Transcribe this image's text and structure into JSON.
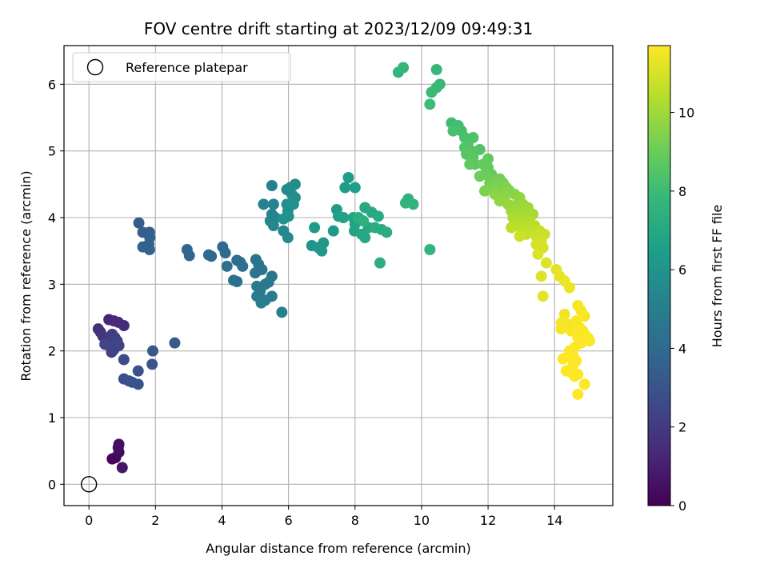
{
  "chart_data": {
    "type": "scatter",
    "title": "FOV centre drift starting at 2023/12/09 09:49:31",
    "xlabel": "Angular distance from reference (arcmin)",
    "ylabel": "Rotation from reference (arcmin)",
    "colorbar_label": "Hours from first FF file",
    "xlim": [
      -0.75,
      15.75
    ],
    "ylim": [
      -0.32,
      6.58
    ],
    "xticks": [
      0,
      2,
      4,
      6,
      8,
      10,
      12,
      14
    ],
    "yticks": [
      0,
      1,
      2,
      3,
      4,
      5,
      6
    ],
    "colorbar_range": [
      0,
      11.7
    ],
    "colorbar_ticks": [
      0,
      2,
      4,
      6,
      8,
      10
    ],
    "colormap": "viridis",
    "grid": true,
    "legend": {
      "placement": "top-left",
      "entries": [
        {
          "label": "Reference platepar",
          "marker": "open-circle"
        }
      ]
    },
    "reference_point": {
      "x": 0,
      "y": 0
    },
    "points": [
      {
        "x": 0.7,
        "y": 0.38,
        "h": 0.1
      },
      {
        "x": 0.8,
        "y": 0.4,
        "h": 0.2
      },
      {
        "x": 0.9,
        "y": 0.48,
        "h": 0.3
      },
      {
        "x": 0.88,
        "y": 0.55,
        "h": 0.4
      },
      {
        "x": 0.9,
        "y": 0.6,
        "h": 0.5
      },
      {
        "x": 1.0,
        "y": 0.25,
        "h": 0.7
      },
      {
        "x": 0.6,
        "y": 2.47,
        "h": 1.2
      },
      {
        "x": 0.75,
        "y": 2.45,
        "h": 1.3
      },
      {
        "x": 0.88,
        "y": 2.43,
        "h": 1.4
      },
      {
        "x": 1.05,
        "y": 2.38,
        "h": 1.5
      },
      {
        "x": 0.28,
        "y": 2.33,
        "h": 1.6
      },
      {
        "x": 0.35,
        "y": 2.28,
        "h": 1.7
      },
      {
        "x": 0.42,
        "y": 2.22,
        "h": 1.8
      },
      {
        "x": 0.5,
        "y": 2.18,
        "h": 1.9
      },
      {
        "x": 0.55,
        "y": 2.12,
        "h": 2.0
      },
      {
        "x": 0.6,
        "y": 2.08,
        "h": 2.05
      },
      {
        "x": 0.7,
        "y": 2.25,
        "h": 2.1
      },
      {
        "x": 0.78,
        "y": 2.2,
        "h": 2.15
      },
      {
        "x": 0.85,
        "y": 2.15,
        "h": 2.2
      },
      {
        "x": 0.9,
        "y": 2.08,
        "h": 2.25
      },
      {
        "x": 0.75,
        "y": 2.02,
        "h": 2.3
      },
      {
        "x": 0.68,
        "y": 1.98,
        "h": 2.35
      },
      {
        "x": 0.48,
        "y": 2.1,
        "h": 2.4
      },
      {
        "x": 0.82,
        "y": 2.12,
        "h": 2.45
      },
      {
        "x": 1.05,
        "y": 1.87,
        "h": 2.6
      },
      {
        "x": 1.05,
        "y": 1.58,
        "h": 2.8
      },
      {
        "x": 1.2,
        "y": 1.55,
        "h": 2.85
      },
      {
        "x": 1.3,
        "y": 1.53,
        "h": 2.9
      },
      {
        "x": 1.48,
        "y": 1.5,
        "h": 2.95
      },
      {
        "x": 1.48,
        "y": 1.7,
        "h": 3.0
      },
      {
        "x": 1.9,
        "y": 1.8,
        "h": 3.1
      },
      {
        "x": 1.92,
        "y": 2.0,
        "h": 3.15
      },
      {
        "x": 2.58,
        "y": 2.12,
        "h": 3.3
      },
      {
        "x": 1.5,
        "y": 3.92,
        "h": 3.4
      },
      {
        "x": 1.62,
        "y": 3.78,
        "h": 3.45
      },
      {
        "x": 1.82,
        "y": 3.78,
        "h": 3.5
      },
      {
        "x": 1.83,
        "y": 3.7,
        "h": 3.55
      },
      {
        "x": 1.8,
        "y": 3.6,
        "h": 3.6
      },
      {
        "x": 1.62,
        "y": 3.56,
        "h": 3.65
      },
      {
        "x": 1.82,
        "y": 3.52,
        "h": 3.7
      },
      {
        "x": 2.95,
        "y": 3.52,
        "h": 3.8
      },
      {
        "x": 3.02,
        "y": 3.43,
        "h": 3.85
      },
      {
        "x": 3.6,
        "y": 3.44,
        "h": 3.9
      },
      {
        "x": 3.68,
        "y": 3.42,
        "h": 3.95
      },
      {
        "x": 4.02,
        "y": 3.56,
        "h": 4.0
      },
      {
        "x": 4.1,
        "y": 3.47,
        "h": 4.05
      },
      {
        "x": 4.45,
        "y": 3.36,
        "h": 4.1
      },
      {
        "x": 4.55,
        "y": 3.33,
        "h": 4.15
      },
      {
        "x": 4.62,
        "y": 3.27,
        "h": 4.2
      },
      {
        "x": 4.15,
        "y": 3.27,
        "h": 4.25
      },
      {
        "x": 4.35,
        "y": 3.06,
        "h": 4.3
      },
      {
        "x": 4.45,
        "y": 3.04,
        "h": 4.35
      },
      {
        "x": 5.02,
        "y": 3.37,
        "h": 4.4
      },
      {
        "x": 5.1,
        "y": 3.3,
        "h": 4.45
      },
      {
        "x": 5.2,
        "y": 3.22,
        "h": 4.5
      },
      {
        "x": 5.0,
        "y": 3.17,
        "h": 4.55
      },
      {
        "x": 5.5,
        "y": 3.12,
        "h": 4.6
      },
      {
        "x": 5.4,
        "y": 3.03,
        "h": 4.65
      },
      {
        "x": 5.3,
        "y": 3.0,
        "h": 4.7
      },
      {
        "x": 5.05,
        "y": 2.97,
        "h": 4.75
      },
      {
        "x": 5.15,
        "y": 2.9,
        "h": 4.8
      },
      {
        "x": 5.05,
        "y": 2.82,
        "h": 4.85
      },
      {
        "x": 5.5,
        "y": 2.82,
        "h": 4.9
      },
      {
        "x": 5.3,
        "y": 2.76,
        "h": 4.95
      },
      {
        "x": 5.18,
        "y": 2.72,
        "h": 5.0
      },
      {
        "x": 5.8,
        "y": 2.58,
        "h": 5.05
      },
      {
        "x": 5.25,
        "y": 4.2,
        "h": 5.1
      },
      {
        "x": 5.5,
        "y": 4.48,
        "h": 5.15
      },
      {
        "x": 5.55,
        "y": 4.2,
        "h": 5.2
      },
      {
        "x": 5.5,
        "y": 4.05,
        "h": 5.25
      },
      {
        "x": 5.6,
        "y": 4.0,
        "h": 5.3
      },
      {
        "x": 5.45,
        "y": 3.95,
        "h": 5.35
      },
      {
        "x": 5.55,
        "y": 3.88,
        "h": 5.4
      },
      {
        "x": 5.85,
        "y": 3.8,
        "h": 5.45
      },
      {
        "x": 5.98,
        "y": 3.7,
        "h": 5.5
      },
      {
        "x": 5.95,
        "y": 4.42,
        "h": 5.55
      },
      {
        "x": 6.05,
        "y": 4.45,
        "h": 5.6
      },
      {
        "x": 6.2,
        "y": 4.5,
        "h": 5.65
      },
      {
        "x": 6.1,
        "y": 4.35,
        "h": 5.7
      },
      {
        "x": 6.2,
        "y": 4.3,
        "h": 5.75
      },
      {
        "x": 5.95,
        "y": 4.2,
        "h": 5.8
      },
      {
        "x": 6.15,
        "y": 4.2,
        "h": 5.85
      },
      {
        "x": 5.98,
        "y": 4.1,
        "h": 5.9
      },
      {
        "x": 6.0,
        "y": 4.02,
        "h": 5.95
      },
      {
        "x": 5.85,
        "y": 3.98,
        "h": 6.0
      },
      {
        "x": 6.7,
        "y": 3.58,
        "h": 6.1
      },
      {
        "x": 6.9,
        "y": 3.55,
        "h": 6.15
      },
      {
        "x": 7.0,
        "y": 3.5,
        "h": 6.2
      },
      {
        "x": 7.05,
        "y": 3.62,
        "h": 6.25
      },
      {
        "x": 7.35,
        "y": 3.8,
        "h": 6.3
      },
      {
        "x": 6.78,
        "y": 3.85,
        "h": 6.35
      },
      {
        "x": 7.45,
        "y": 4.12,
        "h": 6.4
      },
      {
        "x": 7.7,
        "y": 4.45,
        "h": 6.45
      },
      {
        "x": 7.8,
        "y": 4.6,
        "h": 6.5
      },
      {
        "x": 8.0,
        "y": 4.45,
        "h": 6.55
      },
      {
        "x": 7.5,
        "y": 4.02,
        "h": 6.6
      },
      {
        "x": 7.65,
        "y": 4.0,
        "h": 6.65
      },
      {
        "x": 7.95,
        "y": 4.0,
        "h": 6.7
      },
      {
        "x": 8.0,
        "y": 3.9,
        "h": 6.75
      },
      {
        "x": 7.98,
        "y": 3.8,
        "h": 6.8
      },
      {
        "x": 8.2,
        "y": 3.75,
        "h": 6.85
      },
      {
        "x": 8.3,
        "y": 3.7,
        "h": 6.9
      },
      {
        "x": 8.4,
        "y": 3.85,
        "h": 6.95
      },
      {
        "x": 8.3,
        "y": 4.15,
        "h": 7.0
      },
      {
        "x": 8.5,
        "y": 4.08,
        "h": 7.05
      },
      {
        "x": 8.7,
        "y": 4.02,
        "h": 7.1
      },
      {
        "x": 8.6,
        "y": 3.85,
        "h": 7.15
      },
      {
        "x": 8.8,
        "y": 3.82,
        "h": 7.2
      },
      {
        "x": 8.95,
        "y": 3.78,
        "h": 7.25
      },
      {
        "x": 8.75,
        "y": 3.32,
        "h": 7.3
      },
      {
        "x": 8.1,
        "y": 4.0,
        "h": 7.35
      },
      {
        "x": 8.25,
        "y": 3.95,
        "h": 7.4
      },
      {
        "x": 9.6,
        "y": 4.28,
        "h": 7.5
      },
      {
        "x": 9.52,
        "y": 4.22,
        "h": 7.55
      },
      {
        "x": 9.75,
        "y": 4.2,
        "h": 7.6
      },
      {
        "x": 10.25,
        "y": 3.52,
        "h": 7.65
      },
      {
        "x": 9.3,
        "y": 6.18,
        "h": 7.7
      },
      {
        "x": 9.45,
        "y": 6.25,
        "h": 7.75
      },
      {
        "x": 10.45,
        "y": 6.22,
        "h": 7.8
      },
      {
        "x": 10.55,
        "y": 6.0,
        "h": 7.85
      },
      {
        "x": 10.45,
        "y": 5.95,
        "h": 7.9
      },
      {
        "x": 10.3,
        "y": 5.88,
        "h": 7.95
      },
      {
        "x": 10.25,
        "y": 5.7,
        "h": 8.0
      },
      {
        "x": 10.9,
        "y": 5.42,
        "h": 8.05
      },
      {
        "x": 11.0,
        "y": 5.35,
        "h": 8.1
      },
      {
        "x": 11.1,
        "y": 5.38,
        "h": 8.15
      },
      {
        "x": 11.2,
        "y": 5.3,
        "h": 8.2
      },
      {
        "x": 10.95,
        "y": 5.3,
        "h": 8.25
      },
      {
        "x": 11.3,
        "y": 5.2,
        "h": 8.3
      },
      {
        "x": 11.55,
        "y": 5.2,
        "h": 8.35
      },
      {
        "x": 11.4,
        "y": 5.12,
        "h": 8.4
      },
      {
        "x": 11.75,
        "y": 5.02,
        "h": 8.45
      },
      {
        "x": 11.3,
        "y": 5.05,
        "h": 8.5
      },
      {
        "x": 11.5,
        "y": 5.0,
        "h": 8.55
      },
      {
        "x": 11.35,
        "y": 4.95,
        "h": 8.6
      },
      {
        "x": 11.55,
        "y": 4.9,
        "h": 8.65
      },
      {
        "x": 11.6,
        "y": 4.8,
        "h": 8.7
      },
      {
        "x": 11.45,
        "y": 4.8,
        "h": 8.75
      },
      {
        "x": 12.0,
        "y": 4.88,
        "h": 8.8
      },
      {
        "x": 11.85,
        "y": 4.8,
        "h": 8.85
      },
      {
        "x": 12.0,
        "y": 4.75,
        "h": 8.9
      },
      {
        "x": 12.1,
        "y": 4.65,
        "h": 8.95
      },
      {
        "x": 11.9,
        "y": 4.65,
        "h": 9.0
      },
      {
        "x": 11.75,
        "y": 4.62,
        "h": 9.05
      },
      {
        "x": 12.2,
        "y": 4.55,
        "h": 9.1
      },
      {
        "x": 12.05,
        "y": 4.52,
        "h": 9.15
      },
      {
        "x": 12.35,
        "y": 4.58,
        "h": 9.2
      },
      {
        "x": 12.45,
        "y": 4.52,
        "h": 9.25
      },
      {
        "x": 11.9,
        "y": 4.4,
        "h": 9.3
      },
      {
        "x": 12.1,
        "y": 4.42,
        "h": 9.35
      },
      {
        "x": 12.3,
        "y": 4.45,
        "h": 9.4
      },
      {
        "x": 12.55,
        "y": 4.45,
        "h": 9.45
      },
      {
        "x": 12.65,
        "y": 4.4,
        "h": 9.5
      },
      {
        "x": 12.8,
        "y": 4.35,
        "h": 9.55
      },
      {
        "x": 12.2,
        "y": 4.35,
        "h": 9.6
      },
      {
        "x": 12.5,
        "y": 4.32,
        "h": 9.65
      },
      {
        "x": 12.95,
        "y": 4.3,
        "h": 9.7
      },
      {
        "x": 12.35,
        "y": 4.25,
        "h": 9.75
      },
      {
        "x": 12.6,
        "y": 4.2,
        "h": 9.8
      },
      {
        "x": 12.8,
        "y": 4.18,
        "h": 9.85
      },
      {
        "x": 13.05,
        "y": 4.2,
        "h": 9.9
      },
      {
        "x": 13.2,
        "y": 4.15,
        "h": 9.95
      },
      {
        "x": 12.7,
        "y": 4.1,
        "h": 10.0
      },
      {
        "x": 12.9,
        "y": 4.05,
        "h": 10.05
      },
      {
        "x": 13.1,
        "y": 4.08,
        "h": 10.1
      },
      {
        "x": 13.35,
        "y": 4.05,
        "h": 10.15
      },
      {
        "x": 12.75,
        "y": 4.0,
        "h": 10.2
      },
      {
        "x": 13.0,
        "y": 3.98,
        "h": 10.25
      },
      {
        "x": 13.25,
        "y": 3.95,
        "h": 10.3
      },
      {
        "x": 12.85,
        "y": 3.92,
        "h": 10.35
      },
      {
        "x": 13.1,
        "y": 3.9,
        "h": 10.4
      },
      {
        "x": 13.4,
        "y": 3.88,
        "h": 10.45
      },
      {
        "x": 12.7,
        "y": 3.85,
        "h": 10.5
      },
      {
        "x": 13.0,
        "y": 3.82,
        "h": 10.55
      },
      {
        "x": 13.3,
        "y": 3.8,
        "h": 10.6
      },
      {
        "x": 13.55,
        "y": 3.8,
        "h": 10.65
      },
      {
        "x": 13.15,
        "y": 3.75,
        "h": 10.7
      },
      {
        "x": 13.45,
        "y": 3.72,
        "h": 10.75
      },
      {
        "x": 13.7,
        "y": 3.75,
        "h": 10.8
      },
      {
        "x": 12.95,
        "y": 3.72,
        "h": 10.85
      },
      {
        "x": 13.6,
        "y": 3.65,
        "h": 10.9
      },
      {
        "x": 13.45,
        "y": 3.6,
        "h": 10.95
      },
      {
        "x": 13.65,
        "y": 3.55,
        "h": 11.0
      },
      {
        "x": 13.5,
        "y": 3.45,
        "h": 11.05
      },
      {
        "x": 13.75,
        "y": 3.32,
        "h": 11.1
      },
      {
        "x": 13.6,
        "y": 3.12,
        "h": 11.15
      },
      {
        "x": 13.65,
        "y": 2.82,
        "h": 11.2
      },
      {
        "x": 14.05,
        "y": 3.22,
        "h": 11.25
      },
      {
        "x": 14.15,
        "y": 3.12,
        "h": 11.3
      },
      {
        "x": 14.3,
        "y": 3.05,
        "h": 11.35
      },
      {
        "x": 14.45,
        "y": 2.95,
        "h": 11.4
      },
      {
        "x": 14.3,
        "y": 2.55,
        "h": 11.45
      },
      {
        "x": 14.2,
        "y": 2.42,
        "h": 11.5
      },
      {
        "x": 14.4,
        "y": 2.4,
        "h": 11.52
      },
      {
        "x": 14.6,
        "y": 2.4,
        "h": 11.54
      },
      {
        "x": 14.2,
        "y": 2.33,
        "h": 11.56
      },
      {
        "x": 14.5,
        "y": 2.3,
        "h": 11.58
      },
      {
        "x": 14.7,
        "y": 2.68,
        "h": 11.6
      },
      {
        "x": 14.8,
        "y": 2.6,
        "h": 11.6
      },
      {
        "x": 14.9,
        "y": 2.52,
        "h": 11.62
      },
      {
        "x": 14.65,
        "y": 2.45,
        "h": 11.62
      },
      {
        "x": 14.75,
        "y": 2.35,
        "h": 11.63
      },
      {
        "x": 14.85,
        "y": 2.3,
        "h": 11.64
      },
      {
        "x": 14.65,
        "y": 2.28,
        "h": 11.64
      },
      {
        "x": 14.9,
        "y": 2.25,
        "h": 11.65
      },
      {
        "x": 15.0,
        "y": 2.2,
        "h": 11.65
      },
      {
        "x": 15.05,
        "y": 2.15,
        "h": 11.66
      },
      {
        "x": 14.7,
        "y": 2.2,
        "h": 11.66
      },
      {
        "x": 14.8,
        "y": 2.12,
        "h": 11.67
      },
      {
        "x": 14.6,
        "y": 2.05,
        "h": 11.67
      },
      {
        "x": 14.45,
        "y": 2.0,
        "h": 11.67
      },
      {
        "x": 14.55,
        "y": 1.95,
        "h": 11.68
      },
      {
        "x": 14.4,
        "y": 1.92,
        "h": 11.68
      },
      {
        "x": 14.25,
        "y": 1.88,
        "h": 11.68
      },
      {
        "x": 14.65,
        "y": 1.85,
        "h": 11.69
      },
      {
        "x": 14.55,
        "y": 1.78,
        "h": 11.69
      },
      {
        "x": 14.35,
        "y": 1.7,
        "h": 11.69
      },
      {
        "x": 14.5,
        "y": 1.68,
        "h": 11.7
      },
      {
        "x": 14.7,
        "y": 1.65,
        "h": 11.7
      },
      {
        "x": 14.6,
        "y": 1.62,
        "h": 11.7
      },
      {
        "x": 14.9,
        "y": 1.5,
        "h": 11.7
      },
      {
        "x": 14.7,
        "y": 1.35,
        "h": 11.7
      }
    ]
  }
}
